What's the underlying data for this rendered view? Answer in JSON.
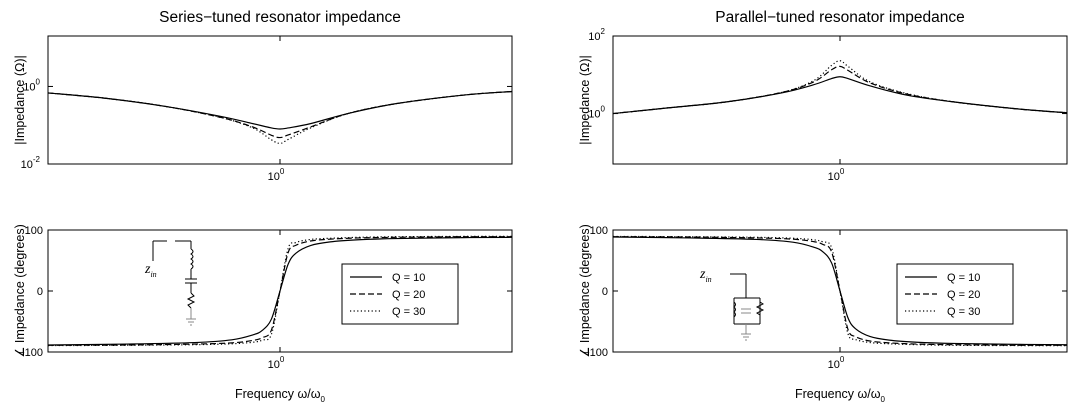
{
  "chart_data": [
    {
      "type": "line",
      "panel": "series-magnitude",
      "title": "Series−tuned resonator impedance",
      "ylabel": "|Impedance (Ω)|",
      "xlabel": "",
      "xscale": "log",
      "yscale": "log",
      "xlim": [
        0.25,
        4
      ],
      "ylim": [
        0.01,
        20
      ],
      "xticks": [
        {
          "value": 1,
          "base": "10",
          "exp": "0"
        }
      ],
      "yticks": [
        {
          "value": 1,
          "base": "10",
          "exp": "0"
        },
        {
          "value": 0.01,
          "base": "10",
          "exp": "-2"
        }
      ],
      "x": [
        0.25,
        0.35,
        0.5,
        0.7,
        0.85,
        0.95,
        1.0,
        1.05,
        1.2,
        1.5,
        2.0,
        3.0,
        4.0
      ],
      "series": [
        {
          "name": "Q = 10",
          "dash": "solid",
          "values": [
            0.68,
            0.5,
            0.31,
            0.17,
            0.11,
            0.085,
            0.08,
            0.085,
            0.11,
            0.2,
            0.36,
            0.6,
            0.74
          ]
        },
        {
          "name": "Q = 20",
          "dash": "dashed",
          "values": [
            0.68,
            0.5,
            0.31,
            0.16,
            0.09,
            0.055,
            0.048,
            0.056,
            0.09,
            0.2,
            0.36,
            0.6,
            0.74
          ]
        },
        {
          "name": "Q = 30",
          "dash": "dotted",
          "values": [
            0.68,
            0.5,
            0.31,
            0.16,
            0.085,
            0.042,
            0.034,
            0.043,
            0.085,
            0.2,
            0.36,
            0.6,
            0.74
          ]
        }
      ]
    },
    {
      "type": "line",
      "panel": "parallel-magnitude",
      "title": "Parallel−tuned resonator impedance",
      "ylabel": "|Impedance (Ω)|",
      "xlabel": "",
      "xscale": "log",
      "yscale": "log",
      "xlim": [
        0.25,
        4
      ],
      "ylim": [
        0.05,
        100
      ],
      "xticks": [
        {
          "value": 1,
          "base": "10",
          "exp": "0"
        }
      ],
      "yticks": [
        {
          "value": 100,
          "base": "10",
          "exp": "2"
        },
        {
          "value": 1,
          "base": "10",
          "exp": "0"
        }
      ],
      "x": [
        0.25,
        0.35,
        0.5,
        0.7,
        0.85,
        0.95,
        1.0,
        1.05,
        1.2,
        1.5,
        2.0,
        3.0,
        4.0
      ],
      "series": [
        {
          "name": "Q = 10",
          "dash": "solid",
          "values": [
            1.0,
            1.4,
            2.0,
            3.4,
            5.5,
            8.0,
            8.9,
            8.0,
            5.2,
            3.0,
            2.0,
            1.3,
            1.05
          ]
        },
        {
          "name": "Q = 20",
          "dash": "dashed",
          "values": [
            1.0,
            1.4,
            2.0,
            3.5,
            6.5,
            13.5,
            16.5,
            13.0,
            6.2,
            3.2,
            2.0,
            1.3,
            1.05
          ]
        },
        {
          "name": "Q = 30",
          "dash": "dotted",
          "values": [
            1.0,
            1.4,
            2.0,
            3.5,
            7.0,
            17.5,
            23.0,
            16.5,
            6.6,
            3.3,
            2.0,
            1.3,
            1.05
          ]
        }
      ]
    },
    {
      "type": "line",
      "panel": "series-phase",
      "title": "",
      "ylabel": "∠ Impedance (degrees)",
      "xlabel": "Frequency ω/ω",
      "xlabel_sub": "0",
      "xscale": "log",
      "yscale": "linear",
      "xlim": [
        0.25,
        4
      ],
      "ylim": [
        -100,
        100
      ],
      "xticks": [
        {
          "value": 1,
          "base": "10",
          "exp": "0"
        }
      ],
      "yticks": [
        {
          "value": 100,
          "label": "100"
        },
        {
          "value": 0,
          "label": "0"
        },
        {
          "value": -100,
          "label": "−100"
        }
      ],
      "legend": "right",
      "schematic_label": "z",
      "schematic_sub": "in",
      "x": [
        0.25,
        0.4,
        0.6,
        0.75,
        0.85,
        0.9,
        0.95,
        1.0,
        1.05,
        1.1,
        1.2,
        1.35,
        1.6,
        2.0,
        3.0,
        4.0
      ],
      "series": [
        {
          "name": "Q = 10",
          "dash": "solid",
          "values": [
            -88.5,
            -87,
            -84.5,
            -80,
            -72,
            -64.5,
            -46,
            0,
            44,
            62,
            74.5,
            80.5,
            84,
            86,
            87.5,
            88
          ]
        },
        {
          "name": "Q = 20",
          "dash": "dashed",
          "values": [
            -89,
            -88.5,
            -87,
            -85,
            -81,
            -76.5,
            -64,
            0,
            63,
            75,
            82,
            85,
            87,
            88,
            89,
            89
          ]
        },
        {
          "name": "Q = 30",
          "dash": "dotted",
          "values": [
            -89.5,
            -89,
            -88,
            -86.5,
            -84,
            -80.5,
            -71,
            0,
            70,
            79.5,
            84.5,
            86.5,
            88,
            89,
            89.5,
            89.5
          ]
        }
      ]
    },
    {
      "type": "line",
      "panel": "parallel-phase",
      "title": "",
      "ylabel": "∠ Impedance (degrees)",
      "xlabel": "Frequency ω/ω",
      "xlabel_sub": "0",
      "xscale": "log",
      "yscale": "linear",
      "xlim": [
        0.25,
        4
      ],
      "ylim": [
        -100,
        100
      ],
      "xticks": [
        {
          "value": 1,
          "base": "10",
          "exp": "0"
        }
      ],
      "yticks": [
        {
          "value": 100,
          "label": "100"
        },
        {
          "value": 0,
          "label": "0"
        },
        {
          "value": -100,
          "label": "−100"
        }
      ],
      "legend": "right",
      "schematic_label": "z",
      "schematic_sub": "in",
      "x": [
        0.25,
        0.4,
        0.6,
        0.75,
        0.85,
        0.9,
        0.95,
        1.0,
        1.05,
        1.1,
        1.2,
        1.35,
        1.6,
        2.0,
        3.0,
        4.0
      ],
      "series": [
        {
          "name": "Q = 10",
          "dash": "solid",
          "values": [
            88.5,
            87,
            84.5,
            80,
            72,
            64.5,
            46,
            0,
            -44,
            -62,
            -74.5,
            -80.5,
            -84,
            -86,
            -87.5,
            -88
          ]
        },
        {
          "name": "Q = 20",
          "dash": "dashed",
          "values": [
            89,
            88.5,
            87,
            85,
            81,
            76.5,
            64,
            0,
            -63,
            -75,
            -82,
            -85,
            -87,
            -88,
            -89,
            -89
          ]
        },
        {
          "name": "Q = 30",
          "dash": "dotted",
          "values": [
            89.5,
            89,
            88,
            86.5,
            84,
            80.5,
            71,
            0,
            -70,
            -79.5,
            -84.5,
            -86.5,
            -88,
            -89,
            -89.5,
            -89.5
          ]
        }
      ]
    }
  ]
}
